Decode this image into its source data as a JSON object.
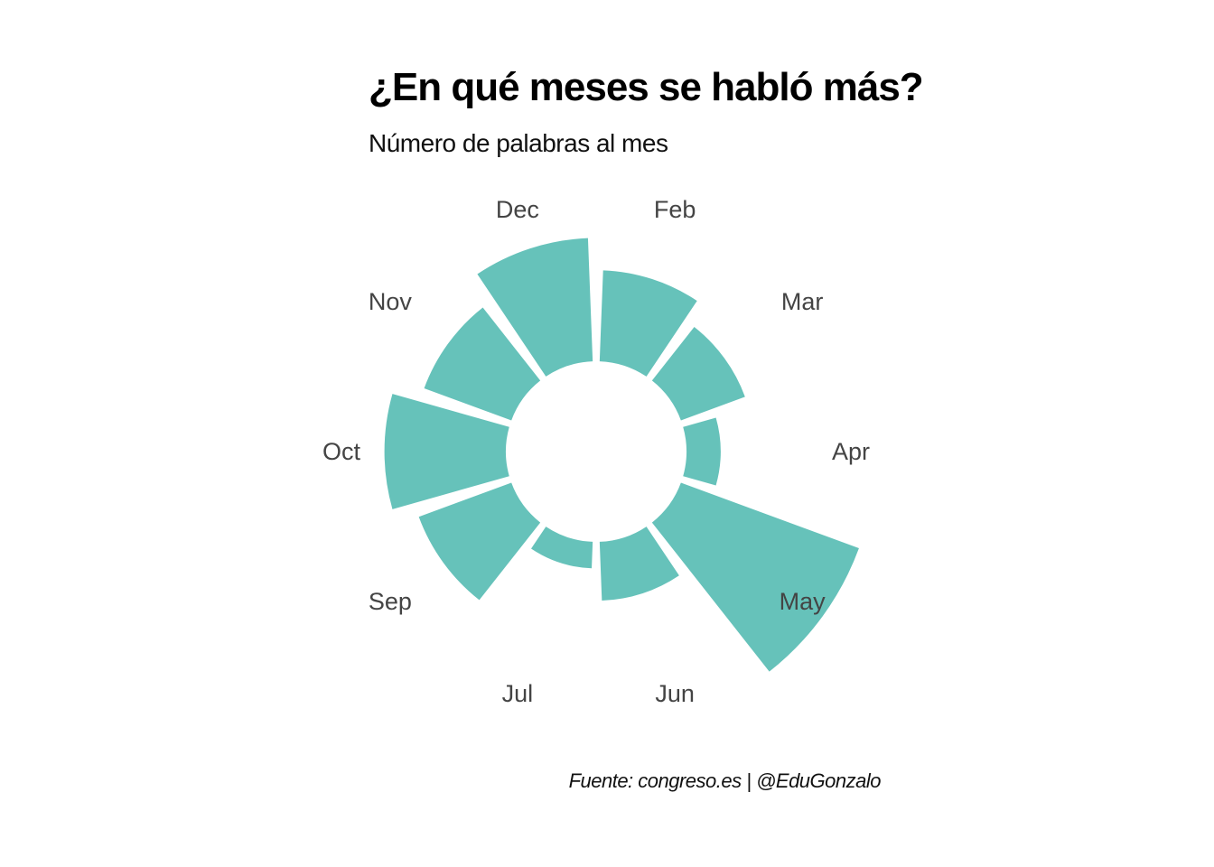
{
  "chart_data": {
    "type": "bar",
    "polar": true,
    "title": "¿En qué meses se habló más?",
    "subtitle": "Número de palabras al mes",
    "caption": "Fuente: congreso.es | @EduGonzalo",
    "categories": [
      "Feb",
      "Mar",
      "Apr",
      "May",
      "Jun",
      "Jul",
      "Sep",
      "Oct",
      "Nov",
      "Dec"
    ],
    "values": [
      0.48,
      0.36,
      0.18,
      1.0,
      0.31,
      0.14,
      0.52,
      0.64,
      0.49,
      0.65
    ],
    "value_scale": "relative (axis not printed)",
    "bar_color": "#66c2ba",
    "grid": false,
    "legend": "none"
  }
}
